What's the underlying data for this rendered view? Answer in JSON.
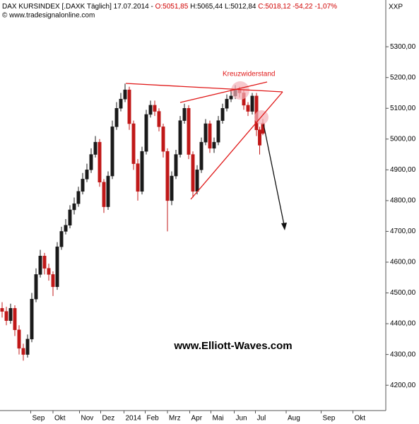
{
  "chart_data": {
    "type": "candlestick",
    "header": [
      {
        "text": "DAX KURSINDEX [.DAXK Täglich] 17.07.2014 - ",
        "color": "#000000"
      },
      {
        "text": "O:5051,85",
        "color": "#d00000"
      },
      {
        "text": " H:5065,44 L:5012,84 ",
        "color": "#000000"
      },
      {
        "text": "C:5018,12 -54,22 -1,07%",
        "color": "#d00000"
      }
    ],
    "copyright": "© www.tradesignalonline.com",
    "axis_label": "XXP",
    "annotation": "Kreuzwiderstand",
    "watermark": "www.Elliott-Waves.com",
    "up_color": "#1a1a1a",
    "down_color": "#c01818",
    "xlim": [
      0,
      364
    ],
    "ylim": [
      4120,
      5406
    ],
    "xticks": [
      {
        "value": 29,
        "label": "Sep"
      },
      {
        "value": 50,
        "label": "Okt"
      },
      {
        "value": 75,
        "label": "Nov"
      },
      {
        "value": 95,
        "label": "Dez"
      },
      {
        "value": 117,
        "label": "2014"
      },
      {
        "value": 137,
        "label": "Feb"
      },
      {
        "value": 158,
        "label": "Mrz"
      },
      {
        "value": 179,
        "label": "Apr"
      },
      {
        "value": 199,
        "label": "Mai"
      },
      {
        "value": 221,
        "label": "Jun"
      },
      {
        "value": 241,
        "label": "Jul"
      },
      {
        "value": 270,
        "label": "Aug"
      },
      {
        "value": 303,
        "label": "Sep"
      },
      {
        "value": 333,
        "label": "Okt"
      }
    ],
    "yticks": [
      {
        "value": 4200,
        "label": "4200,00"
      },
      {
        "value": 4300,
        "label": "4300,00"
      },
      {
        "value": 4400,
        "label": "4400,00"
      },
      {
        "value": 4500,
        "label": "4500,00"
      },
      {
        "value": 4600,
        "label": "4600,00"
      },
      {
        "value": 4700,
        "label": "4700,00"
      },
      {
        "value": 4800,
        "label": "4800,00"
      },
      {
        "value": 4900,
        "label": "4900,00"
      },
      {
        "value": 5000,
        "label": "5000,00"
      },
      {
        "value": 5100,
        "label": "5100,00"
      },
      {
        "value": 5200,
        "label": "5200,00"
      },
      {
        "value": 5300,
        "label": "5300,00"
      }
    ],
    "x": [
      2,
      6,
      10,
      14,
      18,
      22,
      26,
      30,
      34,
      38,
      42,
      46,
      50,
      54,
      58,
      62,
      66,
      70,
      74,
      78,
      82,
      86,
      90,
      94,
      98,
      102,
      106,
      110,
      114,
      118,
      122,
      126,
      130,
      134,
      138,
      142,
      146,
      150,
      154,
      158,
      162,
      166,
      170,
      174,
      178,
      182,
      186,
      190,
      194,
      198,
      202,
      206,
      210,
      214,
      218,
      222,
      226,
      230,
      234,
      238,
      242,
      245,
      248
    ],
    "open": [
      4450,
      4440,
      4410,
      4450,
      4380,
      4320,
      4300,
      4350,
      4480,
      4560,
      4620,
      4580,
      4560,
      4520,
      4650,
      4700,
      4720,
      4770,
      4790,
      4830,
      4870,
      4900,
      4950,
      4990,
      4860,
      4780,
      4880,
      5040,
      5100,
      5130,
      5160,
      5050,
      4920,
      4830,
      4960,
      5080,
      5110,
      5090,
      5040,
      4960,
      4800,
      4880,
      4950,
      5060,
      5100,
      4950,
      4830,
      4900,
      4990,
      5050,
      4970,
      4990,
      5060,
      5100,
      5130,
      5140,
      5160,
      5150,
      5110,
      5090,
      5140,
      5030,
      5051.85
    ],
    "high": [
      4470,
      4455,
      4465,
      4460,
      4395,
      4335,
      4365,
      4500,
      4580,
      4640,
      4630,
      4595,
      4570,
      4665,
      4715,
      4740,
      4785,
      4810,
      4845,
      4890,
      4920,
      4970,
      5010,
      5000,
      4870,
      4895,
      5060,
      5120,
      5150,
      5180,
      5170,
      5060,
      4935,
      4975,
      5095,
      5125,
      5125,
      5100,
      5050,
      4970,
      4895,
      4965,
      5075,
      5115,
      5110,
      4960,
      4915,
      5005,
      5065,
      5060,
      5005,
      5075,
      5115,
      5145,
      5160,
      5175,
      5170,
      5160,
      5120,
      5150,
      5150,
      5040,
      5065.44
    ],
    "low": [
      4420,
      4395,
      4400,
      4360,
      4300,
      4280,
      4290,
      4340,
      4470,
      4550,
      4560,
      4540,
      4490,
      4510,
      4640,
      4690,
      4710,
      4755,
      4780,
      4820,
      4860,
      4890,
      4940,
      4845,
      4760,
      4770,
      4870,
      5030,
      5090,
      5120,
      5030,
      4900,
      4800,
      4820,
      4950,
      5070,
      5075,
      5025,
      4940,
      4700,
      4785,
      4870,
      4940,
      5050,
      4935,
      4810,
      4820,
      4890,
      4980,
      4955,
      4955,
      4980,
      5050,
      5090,
      5120,
      5130,
      5135,
      5095,
      5075,
      5080,
      5010,
      4950,
      5012.84
    ],
    "close": [
      4440,
      4410,
      4450,
      4380,
      4320,
      4300,
      4350,
      4480,
      4560,
      4620,
      4580,
      4560,
      4520,
      4650,
      4700,
      4720,
      4770,
      4790,
      4830,
      4870,
      4900,
      4950,
      4990,
      4860,
      4780,
      4880,
      5040,
      5100,
      5130,
      5160,
      5050,
      4920,
      4830,
      4960,
      5080,
      5110,
      5090,
      5040,
      4960,
      4800,
      4880,
      4950,
      5060,
      5100,
      4950,
      4830,
      4900,
      4990,
      5050,
      4970,
      4990,
      5060,
      5100,
      5130,
      5140,
      5160,
      5150,
      5110,
      5090,
      5140,
      5030,
      4980,
      5018.12
    ]
  }
}
